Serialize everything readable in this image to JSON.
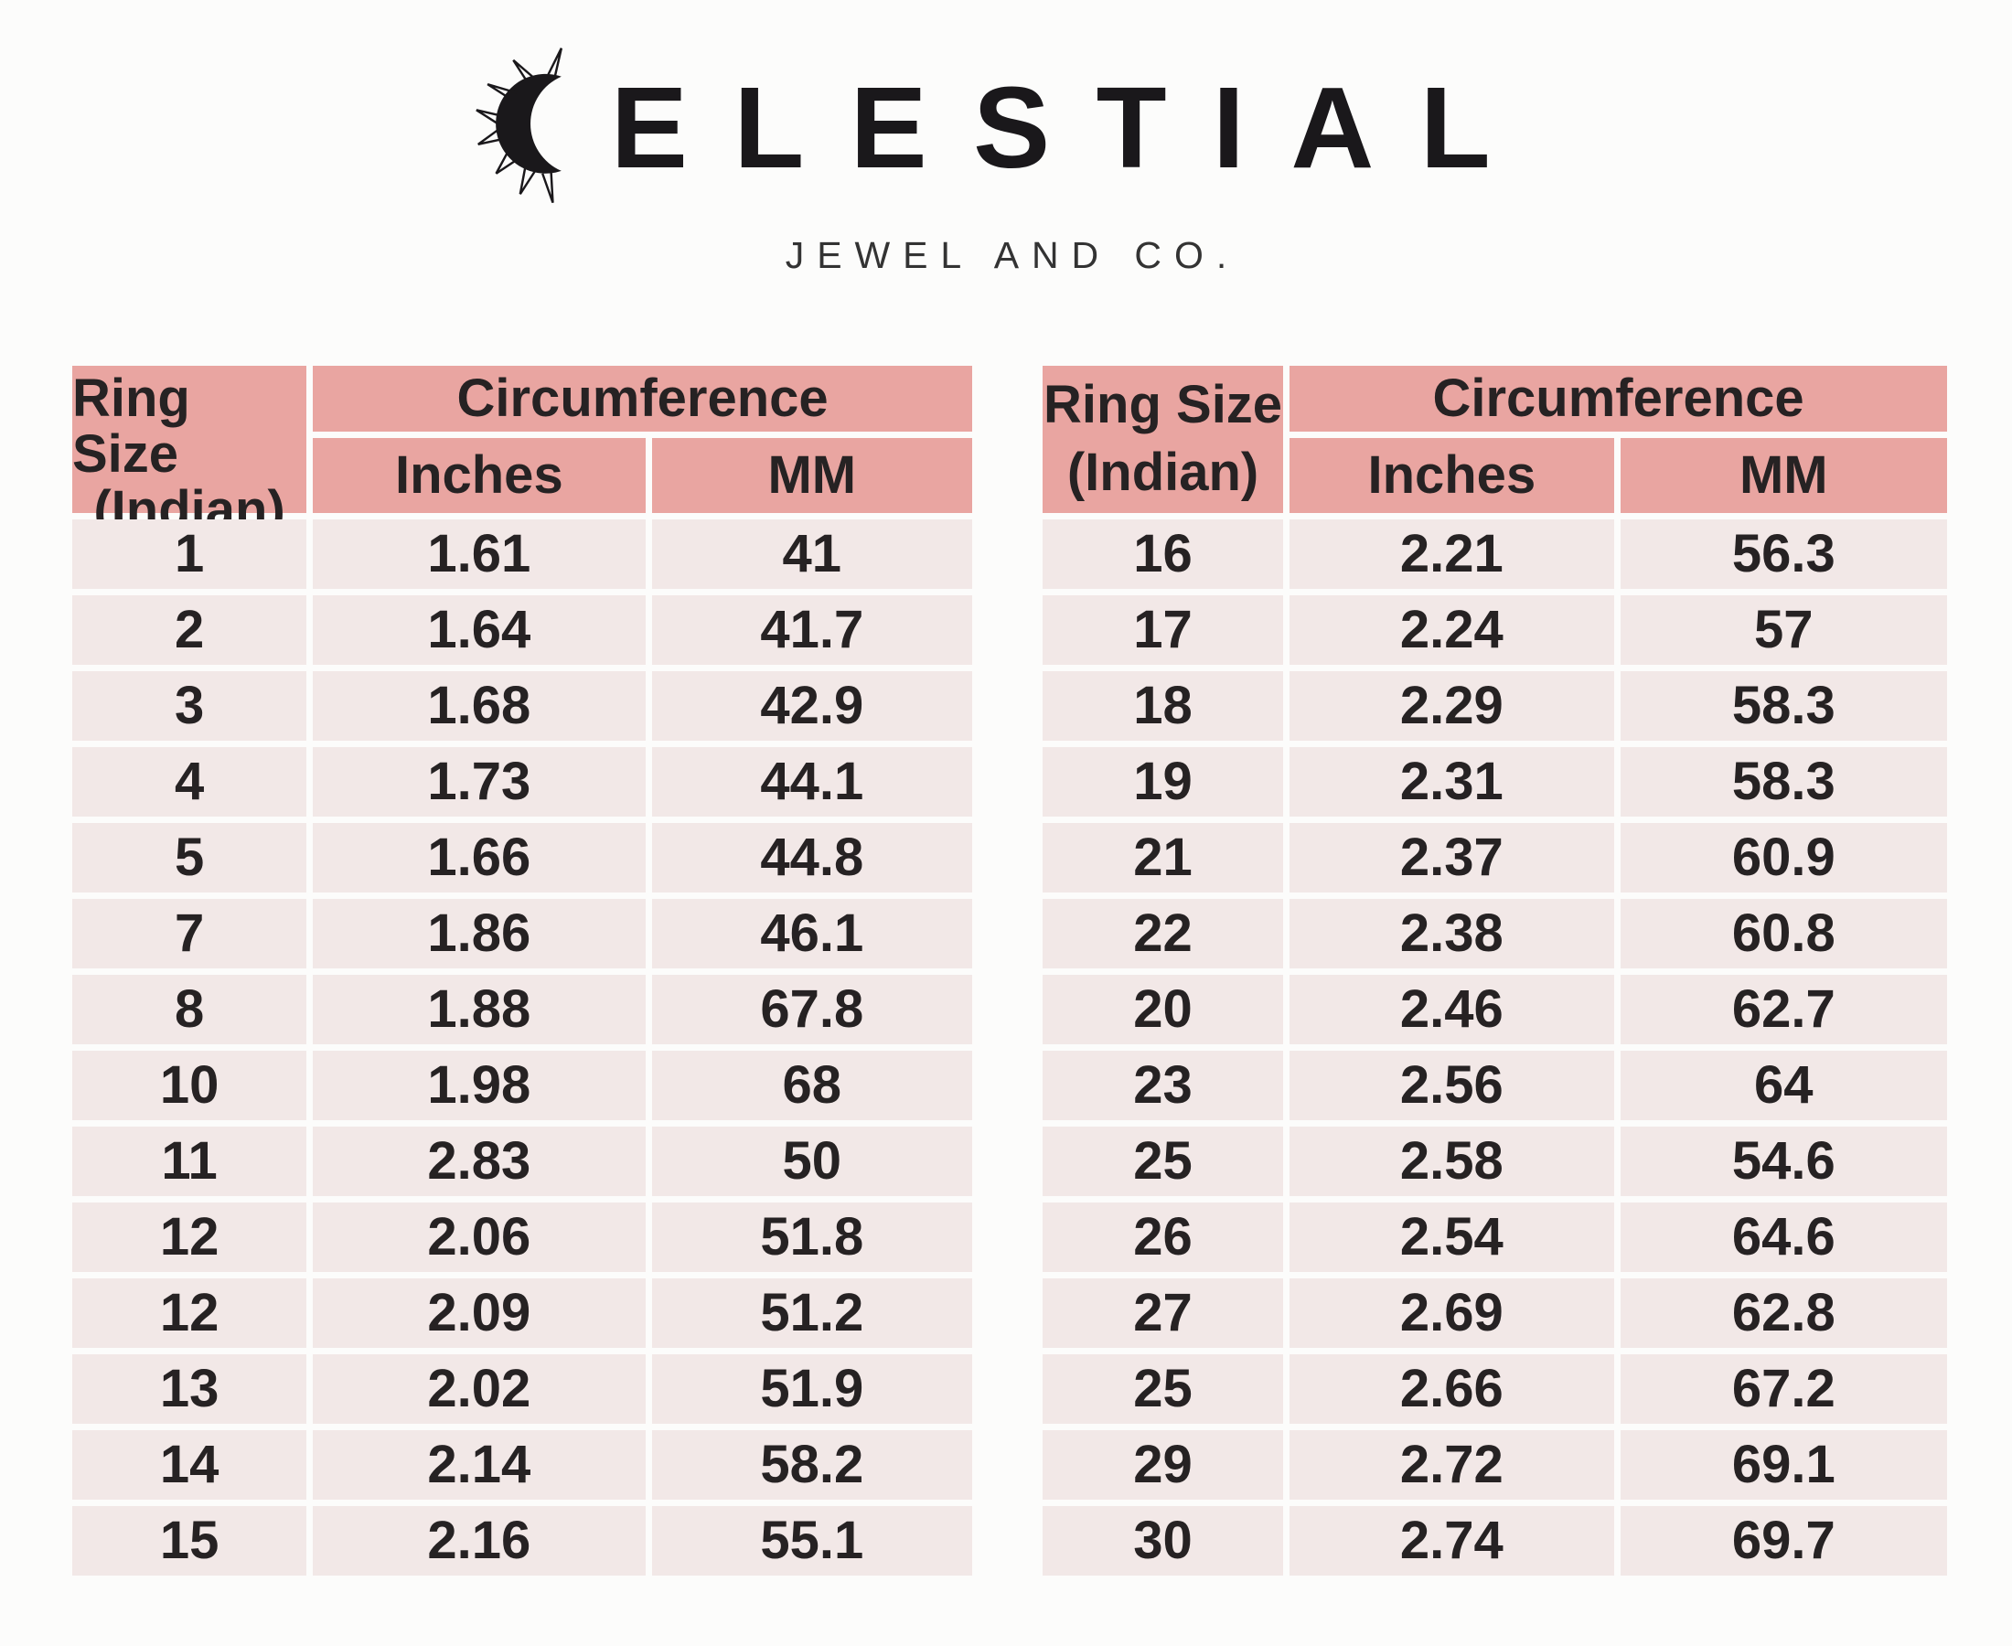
{
  "logo": {
    "brand_full": "CELESTIAL",
    "brand_after_icon": "ELESTIAL",
    "tagline": "JEWEL AND CO.",
    "icon": "sun-crescent-icon"
  },
  "table_header": {
    "col1_line1": "Ring Size",
    "col1_line2": "(Indian)",
    "group_label": "Circumference",
    "sub_col1": "Inches",
    "sub_col2": "MM"
  },
  "left_table_rows": [
    [
      "1",
      "1.61",
      "41"
    ],
    [
      "2",
      "1.64",
      "41.7"
    ],
    [
      "3",
      "1.68",
      "42.9"
    ],
    [
      "4",
      "1.73",
      "44.1"
    ],
    [
      "5",
      "1.66",
      "44.8"
    ],
    [
      "7",
      "1.86",
      "46.1"
    ],
    [
      "8",
      "1.88",
      "67.8"
    ],
    [
      "10",
      "1.98",
      "68"
    ],
    [
      "11",
      "2.83",
      "50"
    ],
    [
      "12",
      "2.06",
      "51.8"
    ],
    [
      "12",
      "2.09",
      "51.2"
    ],
    [
      "13",
      "2.02",
      "51.9"
    ],
    [
      "14",
      "2.14",
      "58.2"
    ],
    [
      "15",
      "2.16",
      "55.1"
    ]
  ],
  "right_table_rows": [
    [
      "16",
      "2.21",
      "56.3"
    ],
    [
      "17",
      "2.24",
      "57"
    ],
    [
      "18",
      "2.29",
      "58.3"
    ],
    [
      "19",
      "2.31",
      "58.3"
    ],
    [
      "21",
      "2.37",
      "60.9"
    ],
    [
      "22",
      "2.38",
      "60.8"
    ],
    [
      "20",
      "2.46",
      "62.7"
    ],
    [
      "23",
      "2.56",
      "64"
    ],
    [
      "25",
      "2.58",
      "54.6"
    ],
    [
      "26",
      "2.54",
      "64.6"
    ],
    [
      "27",
      "2.69",
      "62.8"
    ],
    [
      "25",
      "2.66",
      "67.2"
    ],
    [
      "29",
      "2.72",
      "69.1"
    ],
    [
      "30",
      "2.74",
      "69.7"
    ]
  ],
  "colors": {
    "page_bg": "#fcfcfb",
    "header_bg": "#e9a5a1",
    "cell_bg": "#f2e8e7",
    "text": "#262223",
    "logo_text": "#1a181b",
    "tagline_text": "#333333"
  }
}
